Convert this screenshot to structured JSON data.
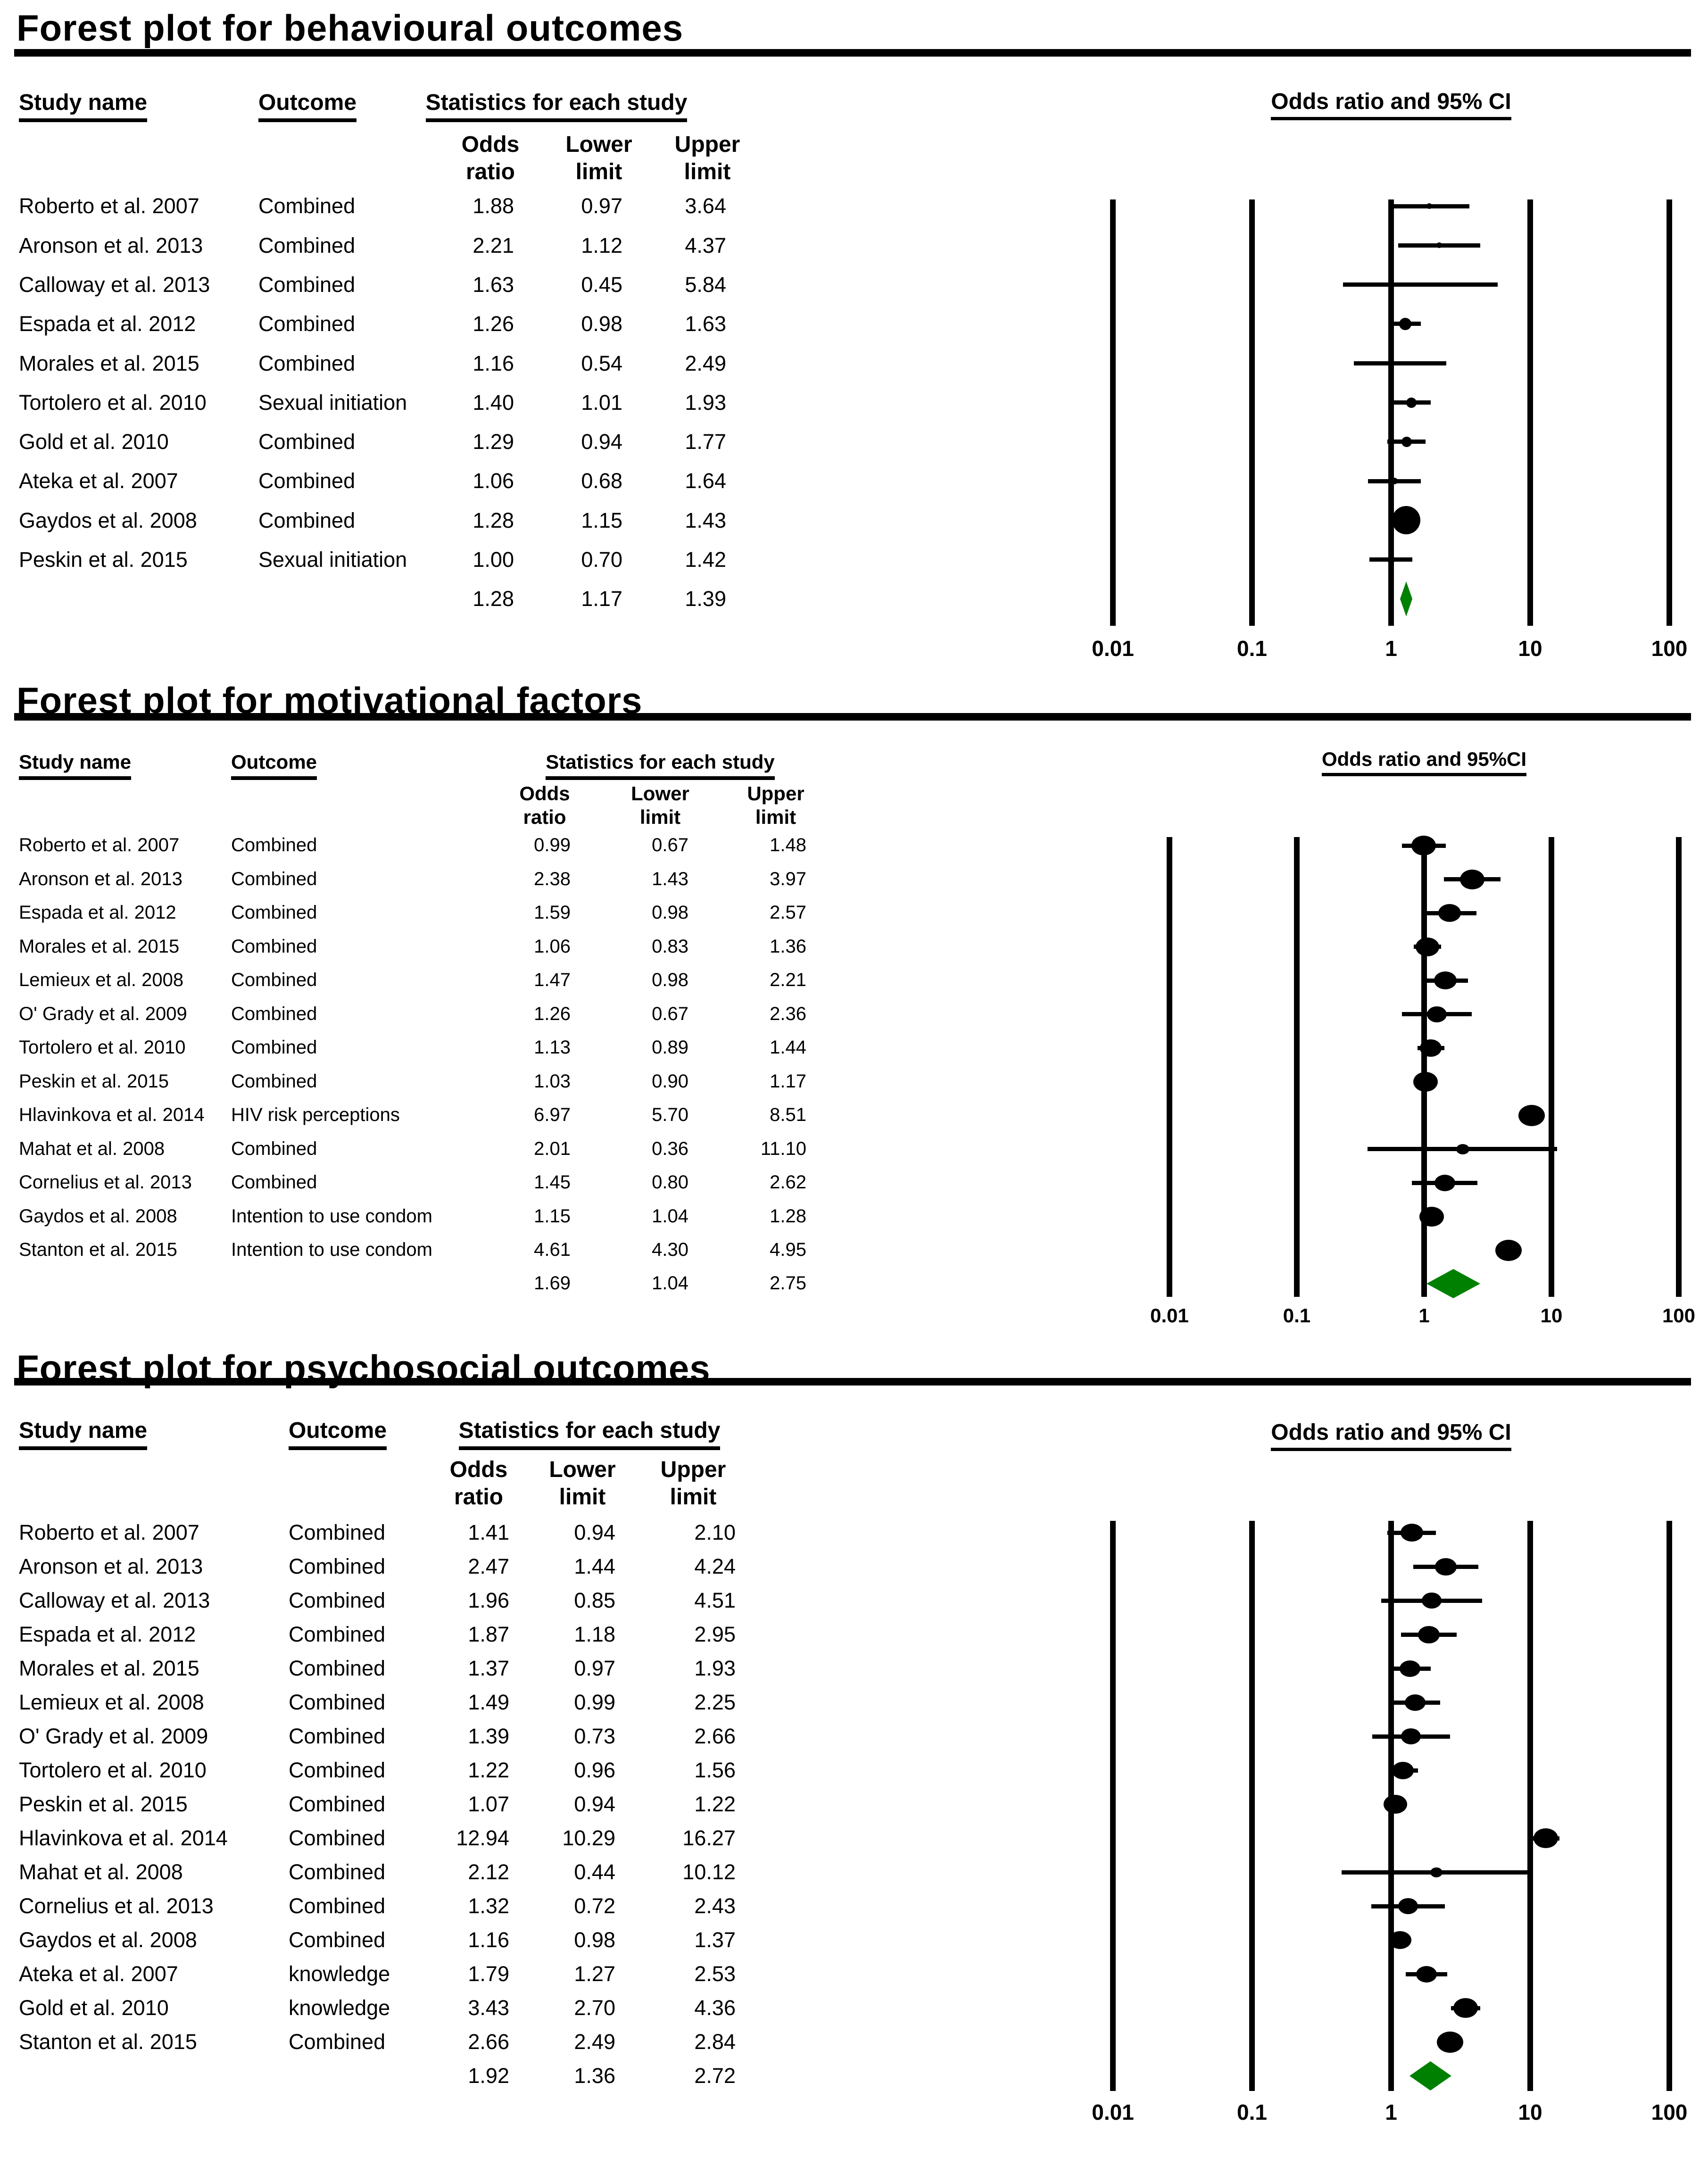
{
  "colors": {
    "text": "#000000",
    "lines": "#000000",
    "summary_diamond": "#008000"
  },
  "panels": [
    {
      "id": "behavioural",
      "title": "Forest plot for behavioural outcomes",
      "table": {
        "headers": {
          "study": "Study name",
          "outcome": "Outcome",
          "statistics": "Statistics for each study"
        },
        "sub_headers": {
          "or": [
            "Odds",
            "ratio"
          ],
          "lower": [
            "Lower",
            "limit"
          ],
          "upper": [
            "Upper",
            "limit"
          ]
        },
        "rows": [
          {
            "study": "Roberto et al. 2007",
            "outcome": "Combined",
            "or": 1.88,
            "lower": 0.97,
            "upper": 3.64,
            "size": 12
          },
          {
            "study": "Aronson et al. 2013",
            "outcome": "Combined",
            "or": 2.21,
            "lower": 1.12,
            "upper": 4.37,
            "size": 12
          },
          {
            "study": "Calloway et al. 2013",
            "outcome": "Combined",
            "or": 1.63,
            "lower": 0.45,
            "upper": 5.84,
            "size": 7
          },
          {
            "study": "Espada et al. 2012",
            "outcome": "Combined",
            "or": 1.26,
            "lower": 0.98,
            "upper": 1.63,
            "size": 26
          },
          {
            "study": "Morales et al. 2015",
            "outcome": "Combined",
            "or": 1.16,
            "lower": 0.54,
            "upper": 2.49,
            "size": 9
          },
          {
            "study": "Tortolero et al. 2010",
            "outcome": "Sexual initiation",
            "or": 1.4,
            "lower": 1.01,
            "upper": 1.93,
            "size": 22
          },
          {
            "study": "Gold et al. 2010",
            "outcome": "Combined",
            "or": 1.29,
            "lower": 0.94,
            "upper": 1.77,
            "size": 22
          },
          {
            "study": "Ateka et al. 2007",
            "outcome": "Combined",
            "or": 1.06,
            "lower": 0.68,
            "upper": 1.64,
            "size": 14
          },
          {
            "study": "Gaydos et al. 2008",
            "outcome": "Combined",
            "or": 1.28,
            "lower": 1.15,
            "upper": 1.43,
            "size": 60
          },
          {
            "study": "Peskin et al. 2015",
            "outcome": "Sexual initiation",
            "or": 1.0,
            "lower": 0.7,
            "upper": 1.42,
            "size": 16
          }
        ],
        "summary": {
          "or": 1.28,
          "lower": 1.17,
          "upper": 1.39
        }
      },
      "plot": {
        "title": "Odds ratio and 95% CI",
        "tick_labels": [
          "0.01",
          "0.1",
          "1",
          "10",
          "100"
        ]
      }
    },
    {
      "id": "motivational",
      "title": "Forest plot for motivational factors",
      "table": {
        "headers": {
          "study": "Study name",
          "outcome": "Outcome",
          "statistics": "Statistics for each study"
        },
        "sub_headers": {
          "or": [
            "Odds",
            "ratio"
          ],
          "lower": [
            "Lower",
            "limit"
          ],
          "upper": [
            "Upper",
            "limit"
          ]
        },
        "rows": [
          {
            "study": "Roberto et al. 2007",
            "outcome": "Combined",
            "or": 0.99,
            "lower": 0.67,
            "upper": 1.48,
            "size": 52
          },
          {
            "study": "Aronson et al. 2013",
            "outcome": "Combined",
            "or": 2.38,
            "lower": 1.43,
            "upper": 3.97,
            "size": 52
          },
          {
            "study": "Espada et al. 2012",
            "outcome": "Combined",
            "or": 1.59,
            "lower": 0.98,
            "upper": 2.57,
            "size": 48
          },
          {
            "study": "Morales et al. 2015",
            "outcome": "Combined",
            "or": 1.06,
            "lower": 0.83,
            "upper": 1.36,
            "size": 50
          },
          {
            "study": "Lemieux et al. 2008",
            "outcome": "Combined",
            "or": 1.47,
            "lower": 0.98,
            "upper": 2.21,
            "size": 48
          },
          {
            "study": "O' Grady et al. 2009",
            "outcome": "Combined",
            "or": 1.26,
            "lower": 0.67,
            "upper": 2.36,
            "size": 42
          },
          {
            "study": "Tortolero et al. 2010",
            "outcome": "Combined",
            "or": 1.13,
            "lower": 0.89,
            "upper": 1.44,
            "size": 46
          },
          {
            "study": "Peskin et al. 2015",
            "outcome": "Combined",
            "or": 1.03,
            "lower": 0.9,
            "upper": 1.17,
            "size": 52
          },
          {
            "study": "Hlavinkova et al. 2014",
            "outcome": "HIV risk perceptions",
            "or": 6.97,
            "lower": 5.7,
            "upper": 8.51,
            "size": 56
          },
          {
            "study": "Mahat et al. 2008",
            "outcome": "Combined",
            "or": 2.01,
            "lower": 0.36,
            "upper": 11.1,
            "size": 28
          },
          {
            "study": "Cornelius et al. 2013",
            "outcome": "Combined",
            "or": 1.45,
            "lower": 0.8,
            "upper": 2.62,
            "size": 44
          },
          {
            "study": "Gaydos et al. 2008",
            "outcome": "Intention to use condom",
            "or": 1.15,
            "lower": 1.04,
            "upper": 1.28,
            "size": 52
          },
          {
            "study": "Stanton et al. 2015",
            "outcome": "Intention to use condom",
            "or": 4.61,
            "lower": 4.3,
            "upper": 4.95,
            "size": 56
          }
        ],
        "summary": {
          "or": 1.69,
          "lower": 1.04,
          "upper": 2.75
        }
      },
      "plot": {
        "title": "Odds ratio and 95%CI",
        "tick_labels": [
          "0.01",
          "0.1",
          "1",
          "10",
          "100"
        ]
      }
    },
    {
      "id": "psychosocial",
      "title": "Forest plot for psychosocial outcomes",
      "table": {
        "headers": {
          "study": "Study name",
          "outcome": "Outcome",
          "statistics": "Statistics for each study"
        },
        "sub_headers": {
          "or": [
            "Odds",
            "ratio"
          ],
          "lower": [
            "Lower",
            "limit"
          ],
          "upper": [
            "Upper",
            "limit"
          ]
        },
        "rows": [
          {
            "study": "Roberto et al. 2007",
            "outcome": "Combined",
            "or": 1.41,
            "lower": 0.94,
            "upper": 2.1,
            "size": 48
          },
          {
            "study": "Aronson et al. 2013",
            "outcome": "Combined",
            "or": 2.47,
            "lower": 1.44,
            "upper": 4.24,
            "size": 46
          },
          {
            "study": "Calloway et al. 2013",
            "outcome": "Combined",
            "or": 1.96,
            "lower": 0.85,
            "upper": 4.51,
            "size": 42
          },
          {
            "study": "Espada et al. 2012",
            "outcome": "Combined",
            "or": 1.87,
            "lower": 1.18,
            "upper": 2.95,
            "size": 46
          },
          {
            "study": "Morales et al. 2015",
            "outcome": "Combined",
            "or": 1.37,
            "lower": 0.97,
            "upper": 1.93,
            "size": 44
          },
          {
            "study": "Lemieux et al. 2008",
            "outcome": "Combined",
            "or": 1.49,
            "lower": 0.99,
            "upper": 2.25,
            "size": 44
          },
          {
            "study": "O' Grady et al. 2009",
            "outcome": "Combined",
            "or": 1.39,
            "lower": 0.73,
            "upper": 2.66,
            "size": 42
          },
          {
            "study": "Tortolero et al. 2010",
            "outcome": "Combined",
            "or": 1.22,
            "lower": 0.96,
            "upper": 1.56,
            "size": 46
          },
          {
            "study": "Peskin et al. 2015",
            "outcome": "Combined",
            "or": 1.07,
            "lower": 0.94,
            "upper": 1.22,
            "size": 50
          },
          {
            "study": "Hlavinkova et al. 2014",
            "outcome": "Combined",
            "or": 12.94,
            "lower": 10.29,
            "upper": 16.27,
            "size": 52
          },
          {
            "study": "Mahat et al. 2008",
            "outcome": "Combined",
            "or": 2.12,
            "lower": 0.44,
            "upper": 10.12,
            "size": 26
          },
          {
            "study": "Cornelius et al. 2013",
            "outcome": "Combined",
            "or": 1.32,
            "lower": 0.72,
            "upper": 2.43,
            "size": 42
          },
          {
            "study": "Gaydos et al. 2008",
            "outcome": "Combined",
            "or": 1.16,
            "lower": 0.98,
            "upper": 1.37,
            "size": 48
          },
          {
            "study": "Ateka et al. 2007",
            "outcome": "knowledge",
            "or": 1.79,
            "lower": 1.27,
            "upper": 2.53,
            "size": 44
          },
          {
            "study": "Gold et al. 2010",
            "outcome": "knowledge",
            "or": 3.43,
            "lower": 2.7,
            "upper": 4.36,
            "size": 52
          },
          {
            "study": "Stanton et al. 2015",
            "outcome": "Combined",
            "or": 2.66,
            "lower": 2.49,
            "upper": 2.84,
            "size": 56
          }
        ],
        "summary": {
          "or": 1.92,
          "lower": 1.36,
          "upper": 2.72
        }
      },
      "plot": {
        "title": "Odds ratio and 95% CI",
        "tick_labels": [
          "0.01",
          "0.1",
          "1",
          "10",
          "100"
        ]
      }
    }
  ],
  "chart_data": [
    {
      "type": "scatter",
      "subtype": "forest-plot",
      "title": "Forest plot for behavioural outcomes",
      "x_axis": {
        "label": "Odds ratio and 95% CI",
        "scale": "log10",
        "range": [
          0.01,
          100
        ],
        "ticks": [
          0.01,
          0.1,
          1,
          10,
          100
        ]
      },
      "studies": [
        "Roberto et al. 2007",
        "Aronson et al. 2013",
        "Calloway et al. 2013",
        "Espada et al. 2012",
        "Morales et al. 2015",
        "Tortolero et al. 2010",
        "Gold et al. 2010",
        "Ateka et al. 2007",
        "Gaydos et al. 2008",
        "Peskin et al. 2015"
      ],
      "outcomes": [
        "Combined",
        "Combined",
        "Combined",
        "Combined",
        "Combined",
        "Sexual initiation",
        "Combined",
        "Combined",
        "Combined",
        "Sexual initiation"
      ],
      "odds_ratio": [
        1.88,
        2.21,
        1.63,
        1.26,
        1.16,
        1.4,
        1.29,
        1.06,
        1.28,
        1.0
      ],
      "lower_limit": [
        0.97,
        1.12,
        0.45,
        0.98,
        0.54,
        1.01,
        0.94,
        0.68,
        1.15,
        0.7
      ],
      "upper_limit": [
        3.64,
        4.37,
        5.84,
        1.63,
        2.49,
        1.93,
        1.77,
        1.64,
        1.43,
        1.42
      ],
      "summary": {
        "odds_ratio": 1.28,
        "lower_limit": 1.17,
        "upper_limit": 1.39,
        "marker": "green diamond"
      }
    },
    {
      "type": "scatter",
      "subtype": "forest-plot",
      "title": "Forest plot for motivational factors",
      "x_axis": {
        "label": "Odds ratio and 95%CI",
        "scale": "log10",
        "range": [
          0.01,
          100
        ],
        "ticks": [
          0.01,
          0.1,
          1,
          10,
          100
        ]
      },
      "studies": [
        "Roberto et al. 2007",
        "Aronson et al. 2013",
        "Espada et al. 2012",
        "Morales et al. 2015",
        "Lemieux et al. 2008",
        "O' Grady et al. 2009",
        "Tortolero et al. 2010",
        "Peskin et al. 2015",
        "Hlavinkova et al. 2014",
        "Mahat et al. 2008",
        "Cornelius et al. 2013",
        "Gaydos et al. 2008",
        "Stanton et al. 2015"
      ],
      "outcomes": [
        "Combined",
        "Combined",
        "Combined",
        "Combined",
        "Combined",
        "Combined",
        "Combined",
        "Combined",
        "HIV risk perceptions",
        "Combined",
        "Combined",
        "Intention to use condom",
        "Intention to use condom"
      ],
      "odds_ratio": [
        0.99,
        2.38,
        1.59,
        1.06,
        1.47,
        1.26,
        1.13,
        1.03,
        6.97,
        2.01,
        1.45,
        1.15,
        4.61
      ],
      "lower_limit": [
        0.67,
        1.43,
        0.98,
        0.83,
        0.98,
        0.67,
        0.89,
        0.9,
        5.7,
        0.36,
        0.8,
        1.04,
        4.3
      ],
      "upper_limit": [
        1.48,
        3.97,
        2.57,
        1.36,
        2.21,
        2.36,
        1.44,
        1.17,
        8.51,
        11.1,
        2.62,
        1.28,
        4.95
      ],
      "summary": {
        "odds_ratio": 1.69,
        "lower_limit": 1.04,
        "upper_limit": 2.75,
        "marker": "green diamond"
      }
    },
    {
      "type": "scatter",
      "subtype": "forest-plot",
      "title": "Forest plot for psychosocial outcomes",
      "x_axis": {
        "label": "Odds ratio and 95% CI",
        "scale": "log10",
        "range": [
          0.01,
          100
        ],
        "ticks": [
          0.01,
          0.1,
          1,
          10,
          100
        ]
      },
      "studies": [
        "Roberto et al. 2007",
        "Aronson et al. 2013",
        "Calloway et al. 2013",
        "Espada et al. 2012",
        "Morales et al. 2015",
        "Lemieux et al. 2008",
        "O' Grady et al. 2009",
        "Tortolero et al. 2010",
        "Peskin et al. 2015",
        "Hlavinkova et al. 2014",
        "Mahat et al. 2008",
        "Cornelius et al. 2013",
        "Gaydos et al. 2008",
        "Ateka et al. 2007",
        "Gold et al. 2010",
        "Stanton et al. 2015"
      ],
      "outcomes": [
        "Combined",
        "Combined",
        "Combined",
        "Combined",
        "Combined",
        "Combined",
        "Combined",
        "Combined",
        "Combined",
        "Combined",
        "Combined",
        "Combined",
        "Combined",
        "knowledge",
        "knowledge",
        "Combined"
      ],
      "odds_ratio": [
        1.41,
        2.47,
        1.96,
        1.87,
        1.37,
        1.49,
        1.39,
        1.22,
        1.07,
        12.94,
        2.12,
        1.32,
        1.16,
        1.79,
        3.43,
        2.66
      ],
      "lower_limit": [
        0.94,
        1.44,
        0.85,
        1.18,
        0.97,
        0.99,
        0.73,
        0.96,
        0.94,
        10.29,
        0.44,
        0.72,
        0.98,
        1.27,
        2.7,
        2.49
      ],
      "upper_limit": [
        2.1,
        4.24,
        4.51,
        2.95,
        1.93,
        2.25,
        2.66,
        1.56,
        1.22,
        16.27,
        10.12,
        2.43,
        1.37,
        2.53,
        4.36,
        2.84
      ],
      "summary": {
        "odds_ratio": 1.92,
        "lower_limit": 1.36,
        "upper_limit": 2.72,
        "marker": "green diamond"
      }
    }
  ]
}
